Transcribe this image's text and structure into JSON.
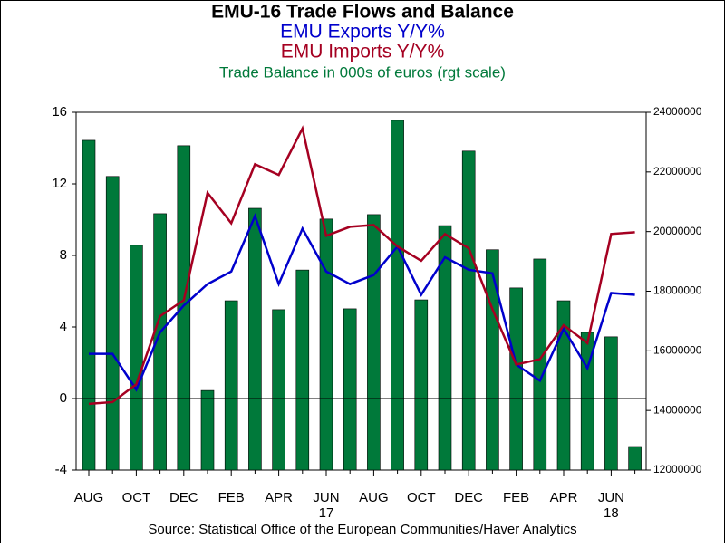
{
  "chart_data": {
    "type": "bar-line",
    "title": "EMU-16 Trade Flows and Balance",
    "source": "Source:  Statistical Office of the European Communities/Haver Analytics",
    "categories": [
      "AUG",
      null,
      "OCT",
      null,
      "DEC",
      null,
      "FEB",
      null,
      "APR",
      null,
      "JUN",
      null,
      "AUG",
      null,
      "OCT",
      null,
      "DEC",
      null,
      "FEB",
      null,
      "APR",
      null,
      "JUN",
      null
    ],
    "year_labels": [
      null,
      null,
      null,
      null,
      null,
      null,
      null,
      null,
      null,
      null,
      "17",
      null,
      null,
      null,
      null,
      null,
      null,
      null,
      null,
      null,
      null,
      null,
      "18",
      null
    ],
    "series": [
      {
        "name": "EMU Exports Y/Y%",
        "color": "#0000cc",
        "kind": "line",
        "axis": "y",
        "values": [
          2.5,
          2.5,
          0.5,
          3.7,
          5.2,
          6.4,
          7.1,
          10.2,
          6.4,
          9.5,
          7.1,
          6.4,
          6.9,
          8.5,
          5.8,
          7.9,
          7.2,
          7.0,
          1.9,
          1.0,
          3.9,
          1.7,
          5.9,
          5.8
        ]
      },
      {
        "name": "EMU Imports Y/Y%",
        "color": "#a50021",
        "kind": "line",
        "axis": "y",
        "values": [
          -0.3,
          -0.2,
          0.8,
          4.6,
          5.5,
          11.5,
          9.8,
          13.1,
          12.5,
          15.1,
          9.1,
          9.6,
          9.7,
          8.5,
          7.7,
          9.2,
          8.4,
          5.0,
          1.9,
          2.2,
          4.1,
          3.1,
          9.2,
          9.3
        ]
      },
      {
        "name": "Trade Balance in 000s of euros (rgt scale)",
        "color": "#00793a",
        "kind": "bar",
        "axis": "y2",
        "values": [
          23060000,
          21850000,
          19540000,
          20600000,
          22880000,
          14670000,
          17680000,
          20780000,
          17380000,
          18710000,
          20420000,
          17410000,
          20570000,
          23730000,
          17710000,
          20200000,
          22700000,
          19390000,
          18110000,
          19080000,
          17680000,
          16620000,
          16470000,
          12790000
        ]
      }
    ],
    "ylim": [
      -4,
      16
    ],
    "yticks": [
      -4,
      0,
      4,
      8,
      12,
      16
    ],
    "y2lim": [
      12000000,
      24000000
    ],
    "y2ticks": [
      12000000,
      14000000,
      16000000,
      18000000,
      20000000,
      22000000,
      24000000
    ]
  }
}
